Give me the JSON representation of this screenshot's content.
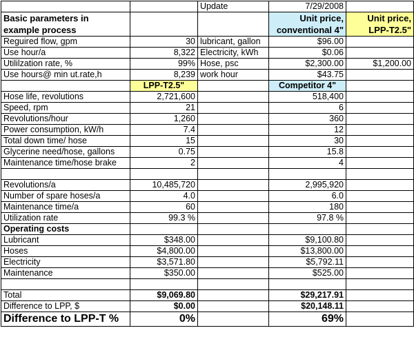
{
  "header": {
    "update_label": "Update",
    "date": "7/29/2008",
    "title_line1": "Basic parameters in",
    "title_line2": "example process",
    "col_conv_line1": "Unit price,",
    "col_conv_line2": "conventional 4\"",
    "col_lpp_line1": "Unit price,",
    "col_lpp_line2": "LPP-T2.5\""
  },
  "basic_params": [
    {
      "label": "Reguired flow, gpm",
      "value": "30",
      "item": "lubricant, gallon",
      "conv": "$96.00",
      "lpp": ""
    },
    {
      "label": "Use hour/a",
      "value": "8,322",
      "item": "Electricity, kWh",
      "conv": "$0.06",
      "lpp": ""
    },
    {
      "label": "Utililzation rate, %",
      "value": "99%",
      "item": "Hose, psc",
      "conv": "$2,300.00",
      "lpp": "$1,200.00"
    },
    {
      "label": "Use hours@ min ut.rate,h",
      "value": "8,239",
      "item": "work hour",
      "conv": "$43.75",
      "lpp": ""
    }
  ],
  "compare_header": {
    "lpp": "LPP-T2.5\"",
    "competitor": "Competitor 4\""
  },
  "specs": [
    {
      "label": "Hose life, revolutions",
      "lpp": "2,721,600",
      "comp": "518,400"
    },
    {
      "label": "Speed, rpm",
      "lpp": "21",
      "comp": "6"
    },
    {
      "label": "Revolutions/hour",
      "lpp": "1,260",
      "comp": "360"
    },
    {
      "label": "Power consumption, kW/h",
      "lpp": "7.4",
      "comp": "12"
    },
    {
      "label": "Total down time/ hose",
      "lpp": "15",
      "comp": "30"
    },
    {
      "label": "Glycerine need/hose, gallons",
      "lpp": "0.75",
      "comp": "15.8"
    },
    {
      "label": "Maintenance time/hose brake",
      "lpp": "2",
      "comp": "4"
    }
  ],
  "annual": [
    {
      "label": "Revolutions/a",
      "lpp": "10,485,720",
      "comp": "2,995,920"
    },
    {
      "label": "Number of spare hoses/a",
      "lpp": "4.0",
      "comp": "6.0"
    },
    {
      "label": "Maintenance time/a",
      "lpp": "60",
      "comp": "180"
    },
    {
      "label": "Utilization rate",
      "lpp": "99.3 %",
      "comp": "97.8 %"
    }
  ],
  "operating_costs_label": "Operating costs",
  "costs": [
    {
      "label": "Lubricant",
      "lpp": "$348.00",
      "comp": "$9,100.80"
    },
    {
      "label": "Hoses",
      "lpp": "$4,800.00",
      "comp": "$13,800.00"
    },
    {
      "label": "Electricity",
      "lpp": "$3,571.80",
      "comp": "$5,792.11"
    },
    {
      "label": "Maintenance",
      "lpp": "$350.00",
      "comp": "$525.00"
    }
  ],
  "totals": {
    "total_label": "Total",
    "total_lpp": "$9,069.80",
    "total_comp": "$29,217.91",
    "diff_label": "Difference to LPP, $",
    "diff_lpp": "$0.00",
    "diff_comp": "$20,148.11",
    "pct_label": "Difference to LPP-T %",
    "pct_lpp": "0%",
    "pct_comp": "69%"
  }
}
